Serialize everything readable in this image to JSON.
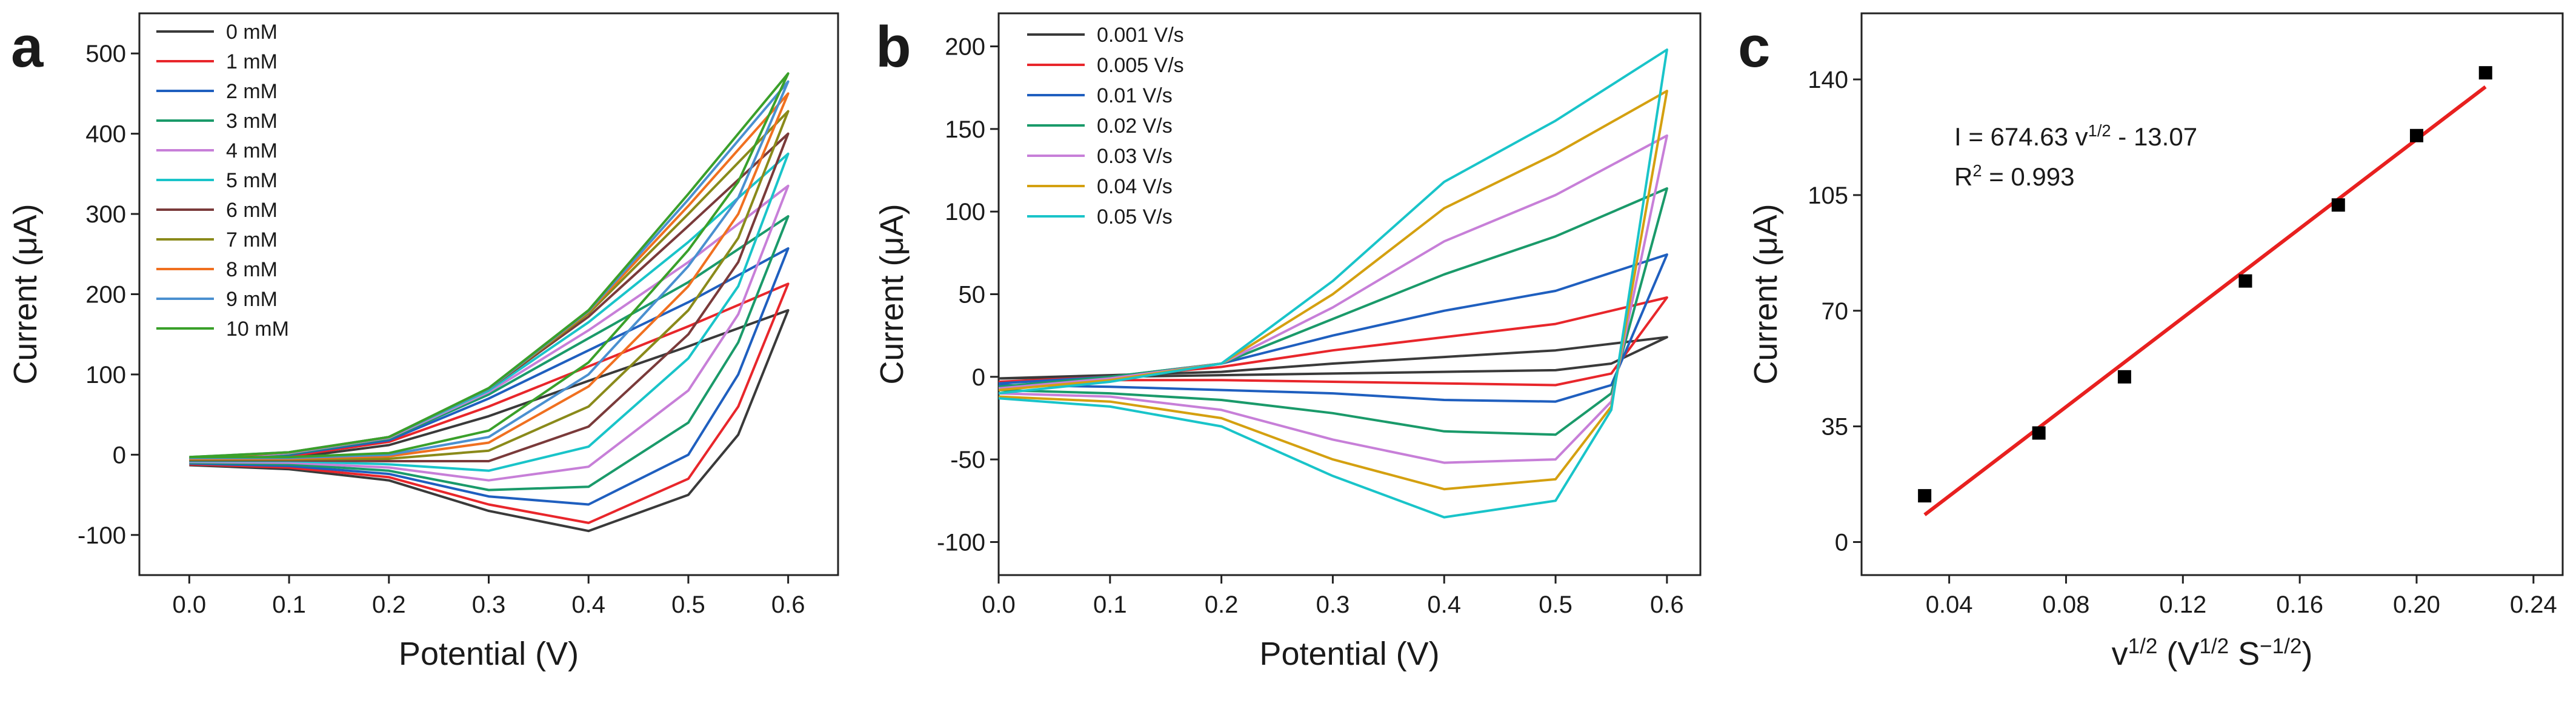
{
  "chart_data": [
    {
      "type": "line",
      "label": "a",
      "xlabel": "Potential (V)",
      "ylabel": "Current (μA)",
      "x": [
        0,
        0.1,
        0.2,
        0.3,
        0.4,
        0.5,
        0.6,
        0.55,
        0.5,
        0.4,
        0.3,
        0.2,
        0.1,
        0
      ],
      "xlim": [
        -0.05,
        0.65
      ],
      "xticks": [
        {
          "value": 0,
          "label": "0.0"
        },
        0.1,
        0.2,
        0.3,
        0.4,
        0.5,
        0.6
      ],
      "ylim": [
        -150,
        550
      ],
      "yticks": [
        -100,
        0,
        100,
        200,
        300,
        400,
        500
      ],
      "legend": "upper left",
      "series": [
        {
          "name": "0 mM",
          "color": "#3a3a3a",
          "values": [
            -10,
            -4,
            12,
            48,
            92,
            135,
            180,
            25,
            -50,
            -95,
            -70,
            -32,
            -18,
            -13
          ]
        },
        {
          "name": "1 mM",
          "color": "#e8262b",
          "values": [
            -9,
            -2,
            16,
            60,
            110,
            160,
            213,
            60,
            -30,
            -85,
            -62,
            -28,
            -16,
            -12
          ]
        },
        {
          "name": "2 mM",
          "color": "#1f5fbf",
          "values": [
            -8,
            0,
            18,
            70,
            130,
            190,
            257,
            100,
            0,
            -62,
            -52,
            -24,
            -14,
            -11
          ]
        },
        {
          "name": "3 mM",
          "color": "#1a9a6a",
          "values": [
            -7,
            1,
            20,
            75,
            145,
            215,
            297,
            140,
            40,
            -40,
            -44,
            -20,
            -12,
            -10
          ]
        },
        {
          "name": "4 mM",
          "color": "#c77fd8",
          "values": [
            -6,
            2,
            21,
            78,
            155,
            240,
            335,
            175,
            80,
            -15,
            -32,
            -16,
            -10,
            -9
          ]
        },
        {
          "name": "5 mM",
          "color": "#19c4c9",
          "values": [
            -5,
            3,
            22,
            80,
            165,
            265,
            375,
            210,
            120,
            10,
            -20,
            -12,
            -8,
            -8
          ]
        },
        {
          "name": "6 mM",
          "color": "#7a3a3a",
          "values": [
            -5,
            3,
            22,
            82,
            172,
            285,
            400,
            240,
            150,
            35,
            -8,
            -8,
            -7,
            -7
          ]
        },
        {
          "name": "7 mM",
          "color": "#8a8a1a",
          "values": [
            -4,
            3,
            22,
            82,
            176,
            300,
            428,
            270,
            180,
            60,
            5,
            -5,
            -6,
            -6
          ]
        },
        {
          "name": "8 mM",
          "color": "#f07020",
          "values": [
            -4,
            3,
            22,
            82,
            178,
            310,
            450,
            300,
            210,
            85,
            15,
            -2,
            -5,
            -5
          ]
        },
        {
          "name": "9 mM",
          "color": "#4a90d0",
          "values": [
            -3,
            3,
            22,
            82,
            179,
            318,
            465,
            320,
            235,
            100,
            22,
            0,
            -4,
            -4
          ]
        },
        {
          "name": "10 mM",
          "color": "#3aa02a",
          "values": [
            -3,
            3,
            22,
            83,
            180,
            325,
            475,
            340,
            255,
            115,
            30,
            2,
            -3,
            -3
          ]
        }
      ]
    },
    {
      "type": "line",
      "label": "b",
      "xlabel": "Potential (V)",
      "ylabel": "Current (μA)",
      "x": [
        0,
        0.1,
        0.2,
        0.3,
        0.4,
        0.5,
        0.6,
        0.55,
        0.5,
        0.4,
        0.3,
        0.2,
        0.1,
        0
      ],
      "xlim": [
        0,
        0.63
      ],
      "xticks": [
        {
          "value": 0,
          "label": "0.0"
        },
        0.1,
        0.2,
        0.3,
        0.4,
        0.5,
        0.6
      ],
      "ylim": [
        -120,
        220
      ],
      "yticks": [
        -100,
        -50,
        0,
        50,
        100,
        150,
        200
      ],
      "legend": "upper left",
      "series": [
        {
          "name": "0.001 V/s",
          "color": "#3a3a3a",
          "values": [
            -1,
            1,
            3,
            8,
            12,
            16,
            24,
            8,
            4,
            3,
            2,
            1,
            0,
            -1
          ]
        },
        {
          "name": "0.005 V/s",
          "color": "#e8262b",
          "values": [
            -3,
            0,
            6,
            16,
            24,
            32,
            48,
            2,
            -5,
            -4,
            -3,
            -2,
            -2,
            -3
          ]
        },
        {
          "name": "0.01 V/s",
          "color": "#1f5fbf",
          "values": [
            -4,
            0,
            8,
            25,
            40,
            52,
            74,
            -5,
            -15,
            -14,
            -10,
            -8,
            -6,
            -5
          ]
        },
        {
          "name": "0.02 V/s",
          "color": "#1a9a6a",
          "values": [
            -6,
            0,
            8,
            35,
            62,
            85,
            114,
            -10,
            -35,
            -33,
            -22,
            -14,
            -10,
            -8
          ]
        },
        {
          "name": "0.03 V/s",
          "color": "#c77fd8",
          "values": [
            -7,
            -1,
            8,
            42,
            82,
            110,
            146,
            -15,
            -50,
            -52,
            -38,
            -20,
            -12,
            -10
          ]
        },
        {
          "name": "0.04 V/s",
          "color": "#d4a010",
          "values": [
            -8,
            -2,
            8,
            50,
            102,
            135,
            173,
            -18,
            -62,
            -68,
            -50,
            -25,
            -15,
            -12
          ]
        },
        {
          "name": "0.05 V/s",
          "color": "#19c4c9",
          "values": [
            -10,
            -3,
            8,
            58,
            118,
            155,
            198,
            -20,
            -75,
            -85,
            -60,
            -30,
            -18,
            -13
          ]
        }
      ]
    },
    {
      "type": "scatter",
      "label": "c",
      "xlabel": [
        "v",
        "1/2",
        " (V",
        "1/2",
        " S",
        "−1/2",
        ")"
      ],
      "ylabel": "Current (μA)",
      "x": [
        0.0316,
        0.0707,
        0.1,
        0.1414,
        0.1732,
        0.2,
        0.2236
      ],
      "values": [
        14,
        33,
        50,
        79,
        102,
        123,
        142
      ],
      "color": "#000000",
      "fit": {
        "x": [
          0.0316,
          0.2236
        ],
        "values": [
          8.25,
          137.78
        ],
        "color": "#e8201f"
      },
      "annotations": [
        [
          "I = 674.63 v",
          "1/2",
          " - 13.07"
        ],
        [
          "R",
          "2",
          " = 0.993"
        ]
      ],
      "xlim": [
        0.01,
        0.25
      ],
      "xticks": [
        0.04,
        0.08,
        0.12,
        0.16,
        {
          "value": 0.2,
          "label": "0.20"
        },
        0.24
      ],
      "ylim": [
        -10,
        160
      ],
      "yticks": [
        0,
        35,
        70,
        105,
        140
      ]
    }
  ]
}
